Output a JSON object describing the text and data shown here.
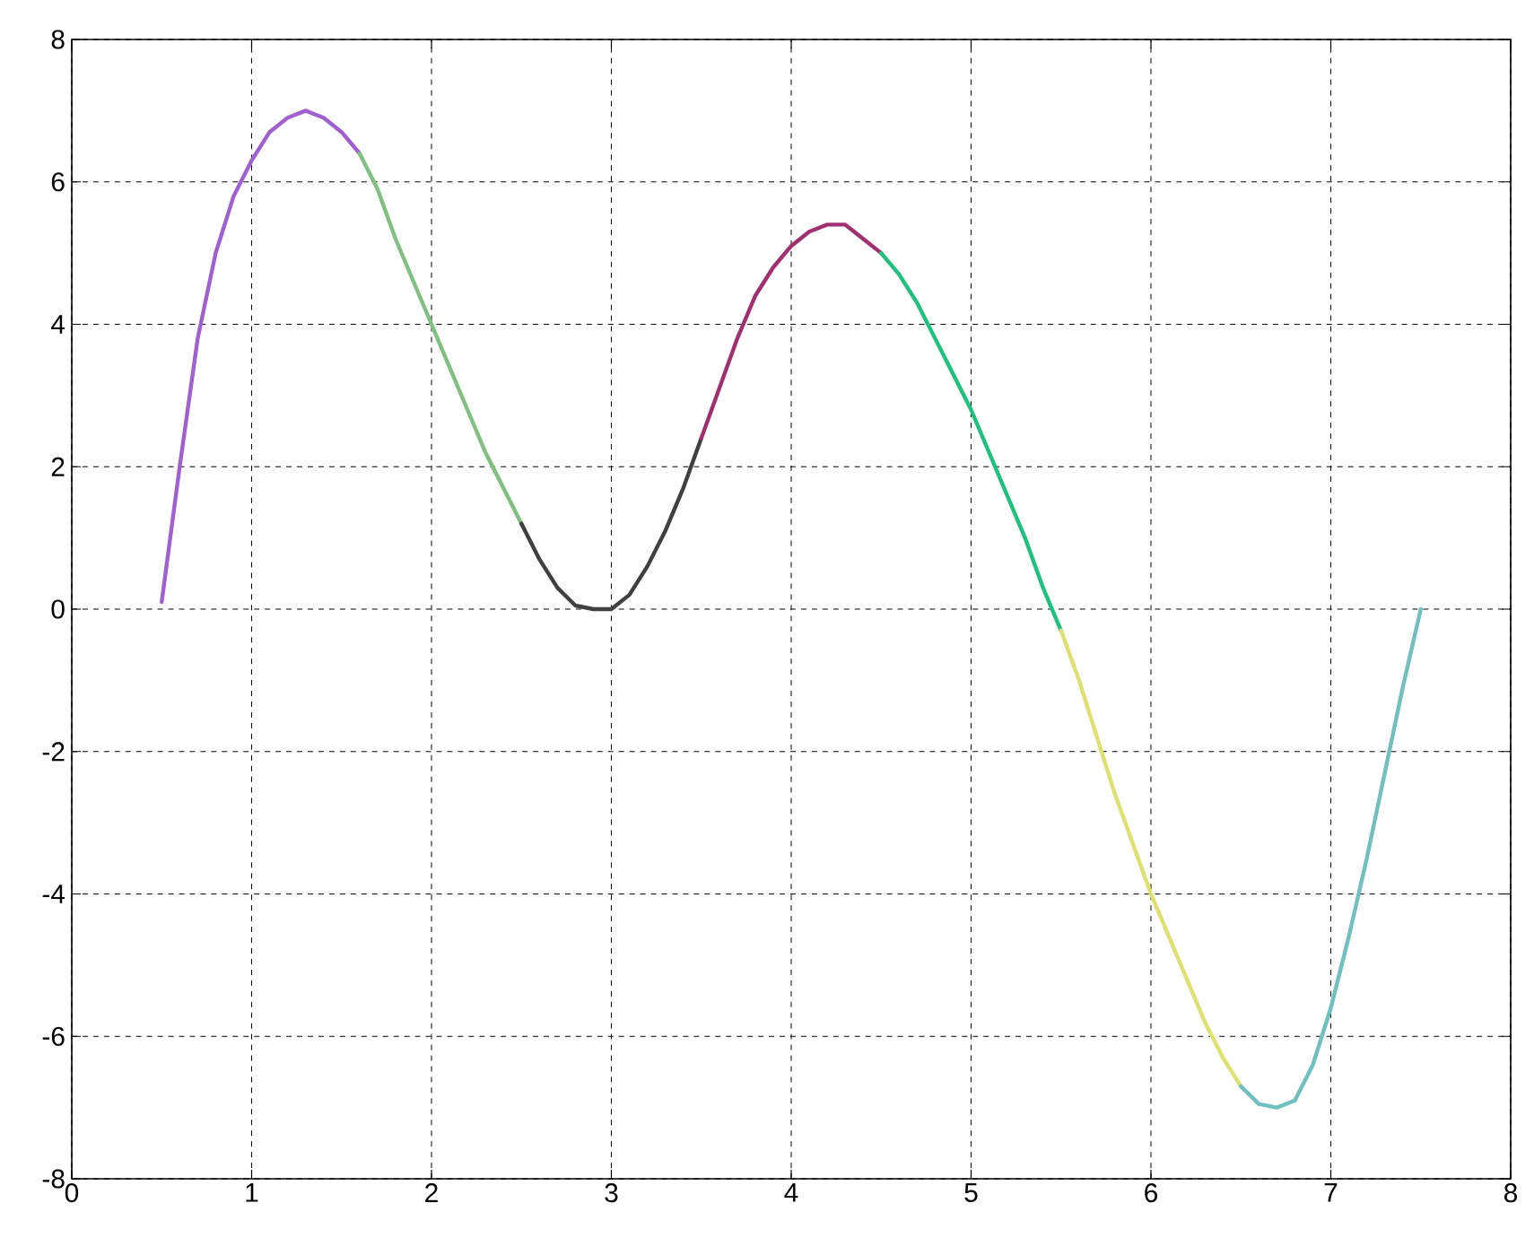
{
  "chart_data": {
    "type": "line",
    "xlim": [
      0,
      8
    ],
    "ylim": [
      -8,
      8
    ],
    "xticks": [
      0,
      1,
      2,
      3,
      4,
      5,
      6,
      7,
      8
    ],
    "yticks": [
      -8,
      -6,
      -4,
      -2,
      0,
      2,
      4,
      6,
      8
    ],
    "grid": true,
    "line_style": "solid",
    "marker": "none",
    "series": [
      {
        "color": "#a060d0",
        "x": [
          0.5,
          0.6,
          0.7,
          0.8,
          0.9,
          1.0,
          1.1,
          1.2,
          1.3,
          1.4,
          1.5,
          1.6
        ],
        "values": [
          0.1,
          2,
          3.8,
          5,
          5.8,
          6.3,
          6.7,
          6.9,
          7.0,
          6.9,
          6.7,
          6.4
        ]
      },
      {
        "color": "#80c080",
        "x": [
          1.6,
          1.7,
          1.8,
          1.9,
          2.0,
          2.1,
          2.2,
          2.3,
          2.4,
          2.5
        ],
        "values": [
          6.4,
          5.9,
          5.2,
          4.6,
          4.0,
          3.4,
          2.8,
          2.2,
          1.7,
          1.2
        ]
      },
      {
        "color": "#404040",
        "x": [
          2.5,
          2.6,
          2.7,
          2.8,
          2.9,
          3.0,
          3.1,
          3.2,
          3.3,
          3.4,
          3.5
        ],
        "values": [
          1.2,
          0.7,
          0.3,
          0.05,
          0,
          0,
          0.2,
          0.6,
          1.1,
          1.7,
          2.4
        ]
      },
      {
        "color": "#a03070",
        "x": [
          3.5,
          3.6,
          3.7,
          3.8,
          3.9,
          4.0,
          4.1,
          4.2,
          4.3,
          4.4,
          4.5
        ],
        "values": [
          2.4,
          3.1,
          3.8,
          4.4,
          4.8,
          5.1,
          5.3,
          5.4,
          5.4,
          5.2,
          5.0
        ]
      },
      {
        "color": "#20c080",
        "x": [
          4.5,
          4.6,
          4.7,
          4.8,
          4.9,
          5.0,
          5.1,
          5.2,
          5.3,
          5.4,
          5.5
        ],
        "values": [
          5.0,
          4.7,
          4.3,
          3.8,
          3.3,
          2.8,
          2.2,
          1.6,
          1.0,
          0.3,
          -0.3
        ]
      },
      {
        "color": "#e0e070",
        "x": [
          5.5,
          5.6,
          5.7,
          5.8,
          5.9,
          6.0,
          6.1,
          6.2,
          6.3,
          6.4,
          6.5
        ],
        "values": [
          -0.3,
          -1.0,
          -1.8,
          -2.6,
          -3.3,
          -4.0,
          -4.6,
          -5.2,
          -5.8,
          -6.3,
          -6.7
        ]
      },
      {
        "color": "#70c0c0",
        "x": [
          6.5,
          6.6,
          6.7,
          6.8,
          6.9,
          7.0,
          7.1,
          7.2,
          7.3,
          7.4,
          7.5
        ],
        "values": [
          -6.7,
          -6.95,
          -7.0,
          -6.9,
          -6.4,
          -5.6,
          -4.6,
          -3.5,
          -2.3,
          -1.1,
          0.0
        ]
      }
    ]
  }
}
